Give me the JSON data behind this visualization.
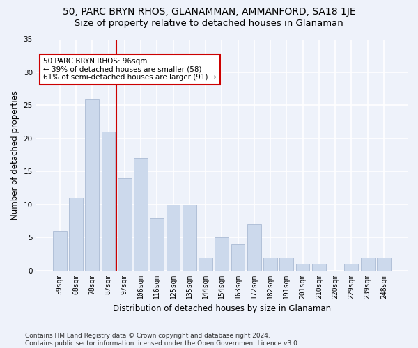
{
  "title": "50, PARC BRYN RHOS, GLANAMMAN, AMMANFORD, SA18 1JE",
  "subtitle": "Size of property relative to detached houses in Glanaman",
  "xlabel": "Distribution of detached houses by size in Glanaman",
  "ylabel": "Number of detached properties",
  "categories": [
    "59sqm",
    "68sqm",
    "78sqm",
    "87sqm",
    "97sqm",
    "106sqm",
    "116sqm",
    "125sqm",
    "135sqm",
    "144sqm",
    "154sqm",
    "163sqm",
    "172sqm",
    "182sqm",
    "191sqm",
    "201sqm",
    "210sqm",
    "220sqm",
    "229sqm",
    "239sqm",
    "248sqm"
  ],
  "values": [
    6,
    11,
    26,
    21,
    14,
    17,
    8,
    10,
    10,
    2,
    5,
    4,
    7,
    2,
    2,
    1,
    1,
    0,
    1,
    2,
    2
  ],
  "bar_color": "#ccd9ec",
  "bar_edge_color": "#aabbd4",
  "vline_color": "#cc0000",
  "annotation_text": "50 PARC BRYN RHOS: 96sqm\n← 39% of detached houses are smaller (58)\n61% of semi-detached houses are larger (91) →",
  "annotation_box_color": "#cc0000",
  "ylim": [
    0,
    35
  ],
  "yticks": [
    0,
    5,
    10,
    15,
    20,
    25,
    30,
    35
  ],
  "footer": "Contains HM Land Registry data © Crown copyright and database right 2024.\nContains public sector information licensed under the Open Government Licence v3.0.",
  "bg_color": "#eef2fa",
  "plot_bg_color": "#eef2fa",
  "grid_color": "#ffffff",
  "title_fontsize": 10,
  "subtitle_fontsize": 9.5,
  "label_fontsize": 8.5,
  "tick_fontsize": 7,
  "footer_fontsize": 6.5
}
